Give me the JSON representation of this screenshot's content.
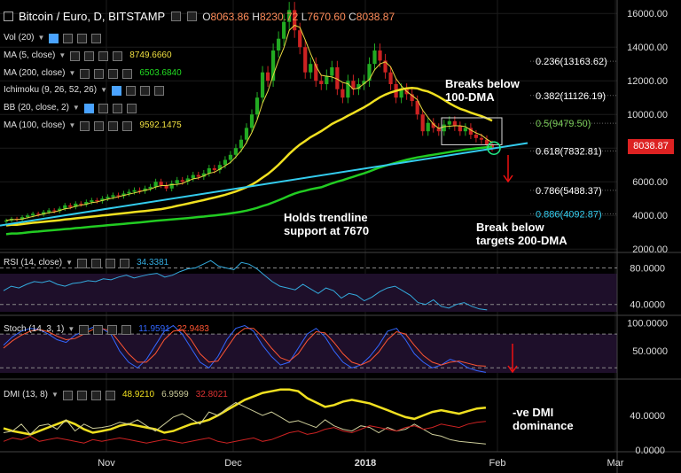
{
  "header": {
    "title": "Bitcoin / Euro, D, BITSTAMP",
    "o_label": "O",
    "o_value": "8063.86",
    "h_label": "H",
    "h_value": "8230.72",
    "l_label": "L",
    "l_value": "7670.60",
    "c_label": "C",
    "c_value": "8038.87"
  },
  "indicators": [
    {
      "name": "Vol (20)",
      "value": "",
      "color": "#e0e0e0"
    },
    {
      "name": "MA (5, close)",
      "value": "8749.6660",
      "color": "#f0e040"
    },
    {
      "name": "MA (200, close)",
      "value": "6503.6840",
      "color": "#22dd22"
    },
    {
      "name": "Ichimoku (9, 26, 52, 26)",
      "value": "",
      "color": "#e0e0e0"
    },
    {
      "name": "BB (20, close, 2)",
      "value": "",
      "color": "#e0e0e0"
    },
    {
      "name": "MA (100, close)",
      "value": "9592.1475",
      "color": "#f0e040"
    }
  ],
  "price_tag": "8038.87",
  "annotations": {
    "breaks_below": "Breaks below\n100-DMA",
    "holds": "Holds trendline\nsupport at 7670",
    "break_targets": "Break below\ntargets 200-DMA",
    "dmi_note": "-ve DMI\ndominance"
  },
  "colors": {
    "background": "#000000",
    "up_candle": "#22aa22",
    "down_candle": "#cc2222",
    "ma100": "#f0e020",
    "ma200": "#22cc22",
    "trendline": "#33ccee",
    "price_tag": "#dd2222",
    "rsi_line": "#33aadd",
    "stoch_k": "#3366ff",
    "stoch_d": "#ff5533",
    "dmi_adx": "#f0e020",
    "dmi_plus": "#cccc99",
    "dmi_minus": "#cc2222"
  },
  "chart_data": [
    {
      "type": "line",
      "title": "Bitcoin / Euro, D, BITSTAMP",
      "xlabel": "",
      "ylabel": "",
      "x_ticks": [
        "Nov",
        "Dec",
        "2018",
        "Feb",
        "Mar"
      ],
      "ylim": [
        1800,
        16800
      ],
      "y_ticks": [
        2000,
        4000,
        6000,
        8000,
        10000,
        12000,
        14000,
        16000
      ],
      "y_tick_labels": [
        "2000.00",
        "4000.00",
        "6000.00",
        "8000.00",
        "10000.00",
        "12000.00",
        "14000.00",
        "16000.00"
      ],
      "fib_levels": [
        {
          "label": "0.236(13163.62)",
          "value": 13163.62,
          "color": "#ffffff"
        },
        {
          "label": "0.382(11126.19)",
          "value": 11126.19,
          "color": "#ffffff"
        },
        {
          "label": "0.5(9479.50)",
          "value": 9479.5,
          "color": "#7ccf5a"
        },
        {
          "label": "0.618(7832.81)",
          "value": 7832.81,
          "color": "#ffffff"
        },
        {
          "label": "0.786(5488.37)",
          "value": 5488.37,
          "color": "#ffffff"
        },
        {
          "label": "0.886(4092.87)",
          "value": 4092.87,
          "color": "#33ccee"
        }
      ],
      "candles_close": [
        3700,
        3800,
        3750,
        3900,
        4000,
        4100,
        4050,
        4200,
        4300,
        4250,
        4400,
        4600,
        4500,
        4700,
        4650,
        4800,
        4900,
        4850,
        5000,
        5100,
        5200,
        5150,
        5300,
        5400,
        5500,
        5450,
        5600,
        5700,
        6000,
        5800,
        5600,
        5900,
        6100,
        6000,
        6200,
        6400,
        6300,
        6500,
        6800,
        6700,
        7000,
        7300,
        7600,
        8000,
        8500,
        9200,
        10000,
        11000,
        12500,
        12000,
        13800,
        14500,
        15500,
        16200,
        15000,
        14000,
        12500,
        13000,
        12000,
        11800,
        12300,
        12800,
        11500,
        11000,
        12000,
        11500,
        11800,
        12000,
        13000,
        13800,
        13200,
        12500,
        11800,
        11000,
        11500,
        11200,
        10800,
        10000,
        9000,
        9500,
        9200,
        9000,
        9400,
        9600,
        9300,
        9000,
        9200,
        8800,
        8600,
        8500,
        8200,
        8039
      ],
      "series": [
        {
          "name": "MA (100, close)",
          "value": "9592.1475",
          "color": "#f0e020"
        },
        {
          "name": "MA (200, close)",
          "value": "6503.6840",
          "color": "#22cc22"
        }
      ]
    },
    {
      "type": "line",
      "title": "RSI (14, close)",
      "value_label": "34.3381",
      "ylim": [
        30,
        95
      ],
      "y_ticks": [
        40,
        80
      ],
      "y_tick_labels": [
        "40.0000",
        "80.0000"
      ],
      "values": [
        55,
        60,
        58,
        62,
        65,
        64,
        66,
        62,
        60,
        63,
        64,
        66,
        65,
        68,
        67,
        70,
        72,
        69,
        71,
        73,
        74,
        70,
        72,
        76,
        79,
        80,
        84,
        88,
        82,
        80,
        78,
        86,
        84,
        79,
        72,
        65,
        60,
        58,
        56,
        62,
        57,
        52,
        58,
        55,
        47,
        52,
        50,
        44,
        48,
        54,
        58,
        60,
        55,
        50,
        42,
        40,
        45,
        38,
        36,
        40,
        42,
        38,
        35,
        34
      ]
    },
    {
      "type": "line",
      "title": "Stoch (14, 3, 1)",
      "value_labels": [
        "11.9591",
        "22.9483"
      ],
      "ylim": [
        0,
        110
      ],
      "y_ticks": [
        50,
        100
      ],
      "y_tick_labels": [
        "50.0000",
        "100.0000"
      ],
      "series": [
        {
          "name": "%K",
          "values": [
            60,
            75,
            85,
            90,
            88,
            80,
            70,
            65,
            78,
            85,
            92,
            90,
            80,
            50,
            30,
            20,
            35,
            60,
            85,
            95,
            80,
            55,
            30,
            20,
            40,
            70,
            90,
            95,
            85,
            60,
            40,
            25,
            30,
            55,
            80,
            90,
            75,
            50,
            30,
            20,
            25,
            40,
            60,
            85,
            90,
            70,
            45,
            30,
            20,
            25,
            35,
            30,
            20,
            15,
            12
          ]
        },
        {
          "name": "%D",
          "values": [
            55,
            68,
            78,
            85,
            88,
            84,
            76,
            70,
            72,
            80,
            88,
            90,
            85,
            65,
            45,
            30,
            30,
            45,
            70,
            85,
            88,
            70,
            45,
            30,
            32,
            55,
            78,
            90,
            90,
            75,
            55,
            38,
            32,
            45,
            68,
            84,
            82,
            65,
            45,
            30,
            25,
            32,
            48,
            70,
            84,
            80,
            60,
            42,
            30,
            25,
            30,
            32,
            28,
            24,
            23
          ]
        }
      ]
    },
    {
      "type": "line",
      "title": "DMI (13, 8)",
      "value_labels": [
        "48.9210",
        "6.9599",
        "32.8021"
      ],
      "ylim": [
        0,
        80
      ],
      "y_ticks": [
        0,
        40
      ],
      "y_tick_labels": [
        "0.0000",
        "40.0000"
      ],
      "series": [
        {
          "name": "ADX",
          "values": [
            25,
            22,
            20,
            18,
            22,
            26,
            30,
            34,
            30,
            24,
            20,
            22,
            24,
            28,
            30,
            28,
            26,
            24,
            20,
            22,
            26,
            30,
            32,
            35,
            40,
            46,
            52,
            58,
            62,
            66,
            68,
            70,
            70,
            68,
            60,
            55,
            50,
            52,
            56,
            58,
            56,
            54,
            50,
            46,
            42,
            38,
            36,
            40,
            44,
            46,
            44,
            42,
            45,
            48,
            49
          ]
        },
        {
          "name": "+DI",
          "values": [
            20,
            22,
            30,
            18,
            28,
            30,
            24,
            35,
            22,
            30,
            25,
            26,
            28,
            32,
            30,
            35,
            28,
            22,
            30,
            38,
            42,
            36,
            30,
            44,
            40,
            48,
            55,
            50,
            45,
            40,
            44,
            38,
            32,
            34,
            30,
            26,
            35,
            28,
            24,
            22,
            28,
            26,
            20,
            26,
            22,
            24,
            30,
            24,
            18,
            16,
            12,
            10,
            9,
            8,
            7
          ]
        },
        {
          "name": "-DI",
          "values": [
            10,
            14,
            12,
            16,
            10,
            12,
            14,
            12,
            10,
            8,
            12,
            10,
            12,
            14,
            12,
            10,
            8,
            10,
            12,
            10,
            8,
            10,
            12,
            14,
            10,
            8,
            10,
            12,
            14,
            10,
            12,
            16,
            20,
            22,
            18,
            20,
            24,
            26,
            22,
            20,
            24,
            28,
            26,
            24,
            22,
            26,
            28,
            24,
            26,
            30,
            28,
            26,
            30,
            32,
            33
          ]
        }
      ]
    }
  ]
}
